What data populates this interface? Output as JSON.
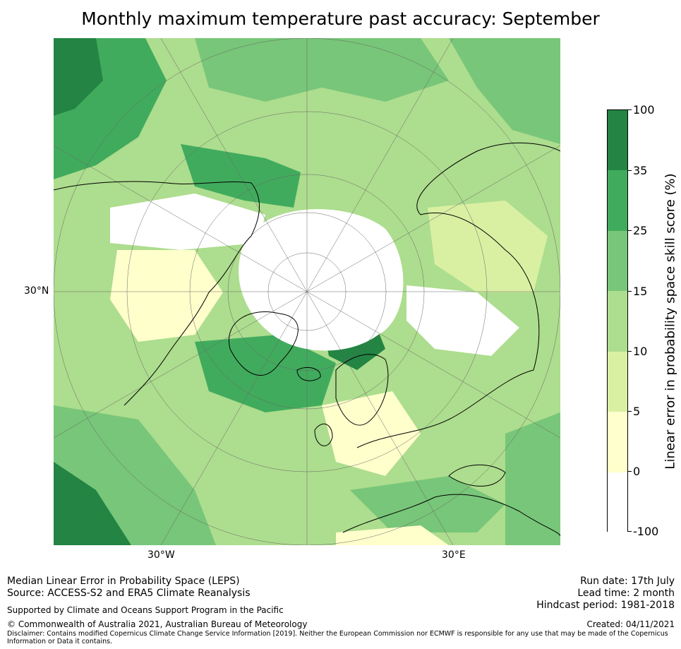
{
  "title": "Monthly maximum temperature past accuracy: September",
  "map": {
    "labels": {
      "lat_left": "30°N",
      "lon_bottom_left": "30°W",
      "lon_bottom_right": "30°E"
    }
  },
  "colorbar": {
    "label": "Linear error in probability space skill score (%)",
    "ticks": [
      "100",
      "35",
      "25",
      "15",
      "10",
      "5",
      "0",
      "-100"
    ],
    "bins": [
      {
        "from": "35",
        "to": "100",
        "color": "#238443"
      },
      {
        "from": "25",
        "to": "35",
        "color": "#41ab5d"
      },
      {
        "from": "15",
        "to": "25",
        "color": "#78c679"
      },
      {
        "from": "10",
        "to": "15",
        "color": "#addd8e"
      },
      {
        "from": "5",
        "to": "10",
        "color": "#d9f0a3"
      },
      {
        "from": "0",
        "to": "5",
        "color": "#ffffcc"
      },
      {
        "from": "-100",
        "to": "0",
        "color": "#ffffff"
      }
    ]
  },
  "footer": {
    "left_line1": "Median Linear Error in Probability Space (LEPS)",
    "left_line2": "Source: ACCESS-S2 and ERA5 Climate Reanalysis",
    "support": "Supported by Climate and Oceans Support Program in the Pacific",
    "copyright": "© Commonwealth of Australia 2021, Australian Bureau of Meteorology",
    "disclaimer": "Disclaimer: Contains modified Copernicus Climate Change Service Information [2019]. Neither the European Commission nor ECMWF is responsible for any use that may be made of the Copernicus Information or Data it contains.",
    "run_date": "Run date: 17th July",
    "lead_time": "Lead time: 2 month",
    "hindcast": "Hindcast period: 1981-2018",
    "created": "Created: 04/11/2021"
  }
}
